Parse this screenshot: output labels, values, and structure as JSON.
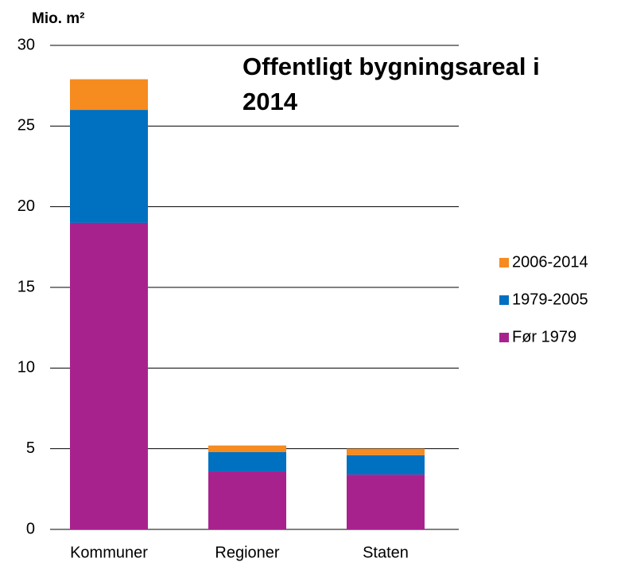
{
  "chart_data": {
    "type": "stacked_bar",
    "title": "Offentligt bygningsareal i 2014",
    "y_label": "Mio. m²",
    "categories": [
      "Kommuner",
      "Regioner",
      "Staten"
    ],
    "series": [
      {
        "name": "Før 1979",
        "color": "#a8228e",
        "values": [
          19.0,
          3.6,
          3.4
        ]
      },
      {
        "name": "1979-2005",
        "color": "#0070c0",
        "values": [
          7.0,
          1.2,
          1.2
        ]
      },
      {
        "name": "2006-2014",
        "color": "#f68b1f",
        "values": [
          1.9,
          0.4,
          0.4
        ]
      }
    ],
    "ylim": [
      0,
      30
    ],
    "yticks": [
      0,
      5,
      10,
      15,
      20,
      25,
      30
    ],
    "grid": true,
    "legend": "right"
  }
}
